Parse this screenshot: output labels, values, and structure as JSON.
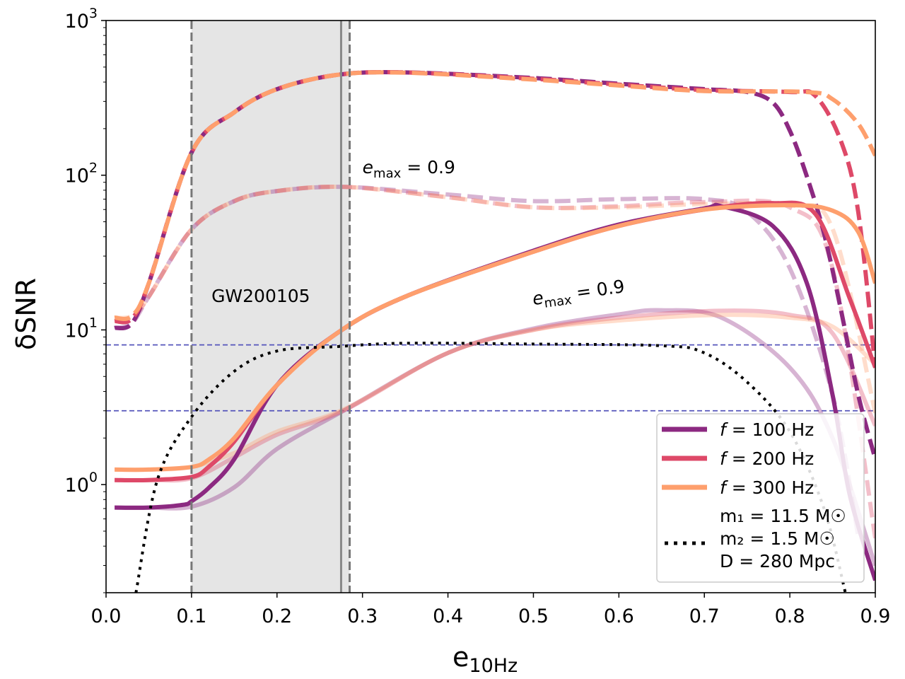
{
  "chart_data": {
    "type": "line",
    "xlabel": "e",
    "xlabel_sub": "10Hz",
    "ylabel": "δSNR",
    "xlim": [
      0.0,
      0.9
    ],
    "ylim": [
      0.2,
      1000
    ],
    "yscale": "log",
    "xticks": [
      0.0,
      0.1,
      0.2,
      0.3,
      0.4,
      0.5,
      0.6,
      0.7,
      0.8,
      0.9
    ],
    "xtick_labels": [
      "0.0",
      "0.1",
      "0.2",
      "0.3",
      "0.4",
      "0.5",
      "0.6",
      "0.7",
      "0.8",
      "0.9"
    ],
    "yticks": [
      {
        "value": 1,
        "base": "10",
        "exp": "0"
      },
      {
        "value": 10,
        "base": "10",
        "exp": "1"
      },
      {
        "value": 100,
        "base": "10",
        "exp": "2"
      },
      {
        "value": 1000,
        "base": "10",
        "exp": "3"
      }
    ],
    "shaded_region": {
      "x": [
        0.1,
        0.285
      ],
      "label": "GW200105",
      "label_pos": [
        0.12,
        16.5
      ],
      "color": "#e5e5e5"
    },
    "vlines": [
      {
        "x": 0.1,
        "style": "dashed",
        "color": "#777777"
      },
      {
        "x": 0.285,
        "style": "dashed",
        "color": "#777777"
      },
      {
        "x": 0.275,
        "style": "solid",
        "color": "#888888"
      }
    ],
    "hlines": [
      {
        "y": 8,
        "style": "dashed",
        "color": "#5555bb"
      },
      {
        "y": 3,
        "style": "dashed",
        "color": "#5555bb"
      }
    ],
    "annotations": [
      {
        "text": "e",
        "sub": "max",
        "rest": " = 0.9",
        "x": 0.3,
        "y": 103,
        "rotate": 0
      },
      {
        "text": "e",
        "sub": "max",
        "rest": " = 0.9",
        "x": 0.5,
        "y": 14.5,
        "rotate": -8
      }
    ],
    "colors": {
      "f100": "#8c2981",
      "f200": "#de4968",
      "f300": "#fe9f6d",
      "dotted": "#000000"
    },
    "series": [
      {
        "name": "f = 100 Hz upper dashed",
        "color_key": "f100",
        "style": "dashed",
        "alpha": 1,
        "x": [
          0.01,
          0.03,
          0.05,
          0.1,
          0.15,
          0.2,
          0.27,
          0.35,
          0.5,
          0.6,
          0.7,
          0.75,
          0.78,
          0.8,
          0.82,
          0.84,
          0.86,
          0.88,
          0.9
        ],
        "y": [
          10.3,
          11,
          20,
          140,
          255,
          360,
          445,
          462,
          425,
          390,
          360,
          345,
          295,
          194,
          98,
          42,
          13.3,
          3.8,
          1.46
        ]
      },
      {
        "name": "f = 200 Hz upper dashed",
        "color_key": "f200",
        "style": "dashed",
        "alpha": 1,
        "x": [
          0.01,
          0.03,
          0.05,
          0.1,
          0.15,
          0.2,
          0.27,
          0.35,
          0.5,
          0.6,
          0.7,
          0.8,
          0.83,
          0.86,
          0.88,
          0.9
        ],
        "y": [
          11.4,
          11.8,
          20,
          140,
          255,
          360,
          445,
          462,
          420,
          385,
          355,
          345,
          325,
          165,
          58,
          5.7
        ]
      },
      {
        "name": "f = 300 Hz upper dashed",
        "color_key": "f300",
        "style": "dashed",
        "alpha": 1,
        "x": [
          0.01,
          0.03,
          0.05,
          0.1,
          0.15,
          0.2,
          0.27,
          0.35,
          0.5,
          0.6,
          0.7,
          0.82,
          0.85,
          0.88,
          0.9
        ],
        "y": [
          12,
          12.3,
          20,
          140,
          255,
          360,
          445,
          460,
          415,
          380,
          350,
          345,
          310,
          215,
          134
        ]
      },
      {
        "name": "f = 100 Hz lower dashed",
        "color_key": "f100",
        "style": "dashed",
        "alpha": 0.35,
        "x": [
          0.01,
          0.03,
          0.05,
          0.1,
          0.15,
          0.2,
          0.28,
          0.4,
          0.5,
          0.6,
          0.7,
          0.75,
          0.8,
          0.85,
          0.88
        ],
        "y": [
          10.3,
          11,
          16.4,
          44.6,
          68,
          79,
          84,
          75,
          68,
          70,
          70,
          58,
          25,
          3.8,
          0.46
        ]
      },
      {
        "name": "f = 200 Hz lower dashed",
        "color_key": "f200",
        "style": "dashed",
        "alpha": 0.35,
        "x": [
          0.01,
          0.03,
          0.05,
          0.1,
          0.15,
          0.2,
          0.28,
          0.4,
          0.5,
          0.6,
          0.7,
          0.8,
          0.85,
          0.9
        ],
        "y": [
          11.4,
          11.8,
          16.4,
          44.6,
          68,
          79,
          84,
          72,
          62,
          63,
          67,
          62,
          25,
          0.45
        ]
      },
      {
        "name": "f = 300 Hz lower dashed",
        "color_key": "f300",
        "style": "dashed",
        "alpha": 0.35,
        "x": [
          0.01,
          0.03,
          0.05,
          0.1,
          0.15,
          0.2,
          0.28,
          0.4,
          0.5,
          0.6,
          0.7,
          0.8,
          0.85,
          0.9
        ],
        "y": [
          12,
          12.3,
          16.4,
          44.6,
          68,
          79,
          84,
          72,
          62,
          62,
          65,
          64,
          45,
          2.9
        ]
      },
      {
        "name": "f = 100 Hz upper solid",
        "color_key": "f100",
        "style": "solid",
        "alpha": 1,
        "x": [
          0.01,
          0.05,
          0.09,
          0.1,
          0.12,
          0.15,
          0.2,
          0.27,
          0.35,
          0.5,
          0.6,
          0.7,
          0.72,
          0.78,
          0.82,
          0.85,
          0.87,
          0.9
        ],
        "y": [
          0.71,
          0.71,
          0.74,
          0.78,
          0.95,
          1.46,
          4.4,
          9.5,
          16.4,
          32.5,
          48,
          61,
          63,
          47,
          20,
          3.8,
          0.86,
          0.24
        ]
      },
      {
        "name": "f = 200 Hz upper solid",
        "color_key": "f200",
        "style": "solid",
        "alpha": 1,
        "x": [
          0.01,
          0.05,
          0.1,
          0.12,
          0.15,
          0.2,
          0.27,
          0.35,
          0.5,
          0.6,
          0.7,
          0.78,
          0.83,
          0.87,
          0.9
        ],
        "y": [
          1.07,
          1.07,
          1.12,
          1.3,
          1.9,
          4.4,
          9.5,
          16.4,
          32,
          47,
          60,
          66,
          56,
          16,
          5.7
        ]
      },
      {
        "name": "f = 300 Hz upper solid",
        "color_key": "f300",
        "style": "solid",
        "alpha": 1,
        "x": [
          0.01,
          0.05,
          0.1,
          0.12,
          0.15,
          0.2,
          0.27,
          0.35,
          0.5,
          0.6,
          0.7,
          0.8,
          0.85,
          0.88,
          0.9
        ],
        "y": [
          1.25,
          1.25,
          1.3,
          1.45,
          2.0,
          4.4,
          9.5,
          16.4,
          32,
          47,
          60,
          64,
          59,
          43,
          20
        ]
      },
      {
        "name": "f = 100 Hz lower solid",
        "color_key": "f100",
        "style": "solid",
        "alpha": 0.35,
        "x": [
          0.01,
          0.05,
          0.1,
          0.15,
          0.2,
          0.28,
          0.4,
          0.5,
          0.6,
          0.65,
          0.72,
          0.8,
          0.85,
          0.9
        ],
        "y": [
          0.71,
          0.71,
          0.72,
          0.96,
          1.7,
          3.05,
          7.1,
          10.2,
          12.6,
          13.4,
          12,
          5.7,
          2.0,
          0.3
        ]
      },
      {
        "name": "f = 200 Hz lower solid",
        "color_key": "f200",
        "style": "solid",
        "alpha": 0.35,
        "x": [
          0.01,
          0.05,
          0.1,
          0.15,
          0.2,
          0.28,
          0.4,
          0.5,
          0.6,
          0.72,
          0.8,
          0.85,
          0.9
        ],
        "y": [
          1.07,
          1.07,
          1.1,
          1.5,
          2.1,
          3.05,
          7.1,
          10,
          12,
          13.3,
          12.5,
          9.5,
          2.4
        ]
      },
      {
        "name": "f = 300 Hz lower solid",
        "color_key": "f300",
        "style": "solid",
        "alpha": 0.35,
        "x": [
          0.01,
          0.05,
          0.1,
          0.15,
          0.2,
          0.28,
          0.4,
          0.5,
          0.6,
          0.72,
          0.8,
          0.85,
          0.9
        ],
        "y": [
          1.25,
          1.25,
          1.3,
          1.6,
          2.2,
          3.1,
          7.1,
          10,
          11.5,
          12.5,
          12,
          10.5,
          6
        ]
      },
      {
        "name": "m1 = 11.5 Msun, m2 = 1.5 Msun, D = 280 Mpc",
        "color_key": "dotted",
        "style": "dotted",
        "alpha": 1,
        "x": [
          0.035,
          0.06,
          0.1,
          0.15,
          0.2,
          0.27,
          0.35,
          0.5,
          0.65,
          0.7,
          0.75,
          0.8,
          0.84,
          0.865
        ],
        "y": [
          0.2,
          1.07,
          2.74,
          5.4,
          7.3,
          7.8,
          8.2,
          8.1,
          7.9,
          7.1,
          4.6,
          2.2,
          0.7,
          0.2
        ]
      }
    ],
    "legend": {
      "placement": "lower-right",
      "entries": [
        {
          "color_key": "f100",
          "style": "solid",
          "var": "f",
          "rest": " = 100 Hz"
        },
        {
          "color_key": "f200",
          "style": "solid",
          "var": "f",
          "rest": " = 200 Hz"
        },
        {
          "color_key": "f300",
          "style": "solid",
          "var": "f",
          "rest": " = 300 Hz"
        },
        {
          "color_key": "dotted",
          "style": "dotted",
          "lines": [
            "m₁ = 11.5 M☉",
            "m₂ = 1.5 M☉",
            "D = 280 Mpc"
          ]
        }
      ]
    }
  }
}
